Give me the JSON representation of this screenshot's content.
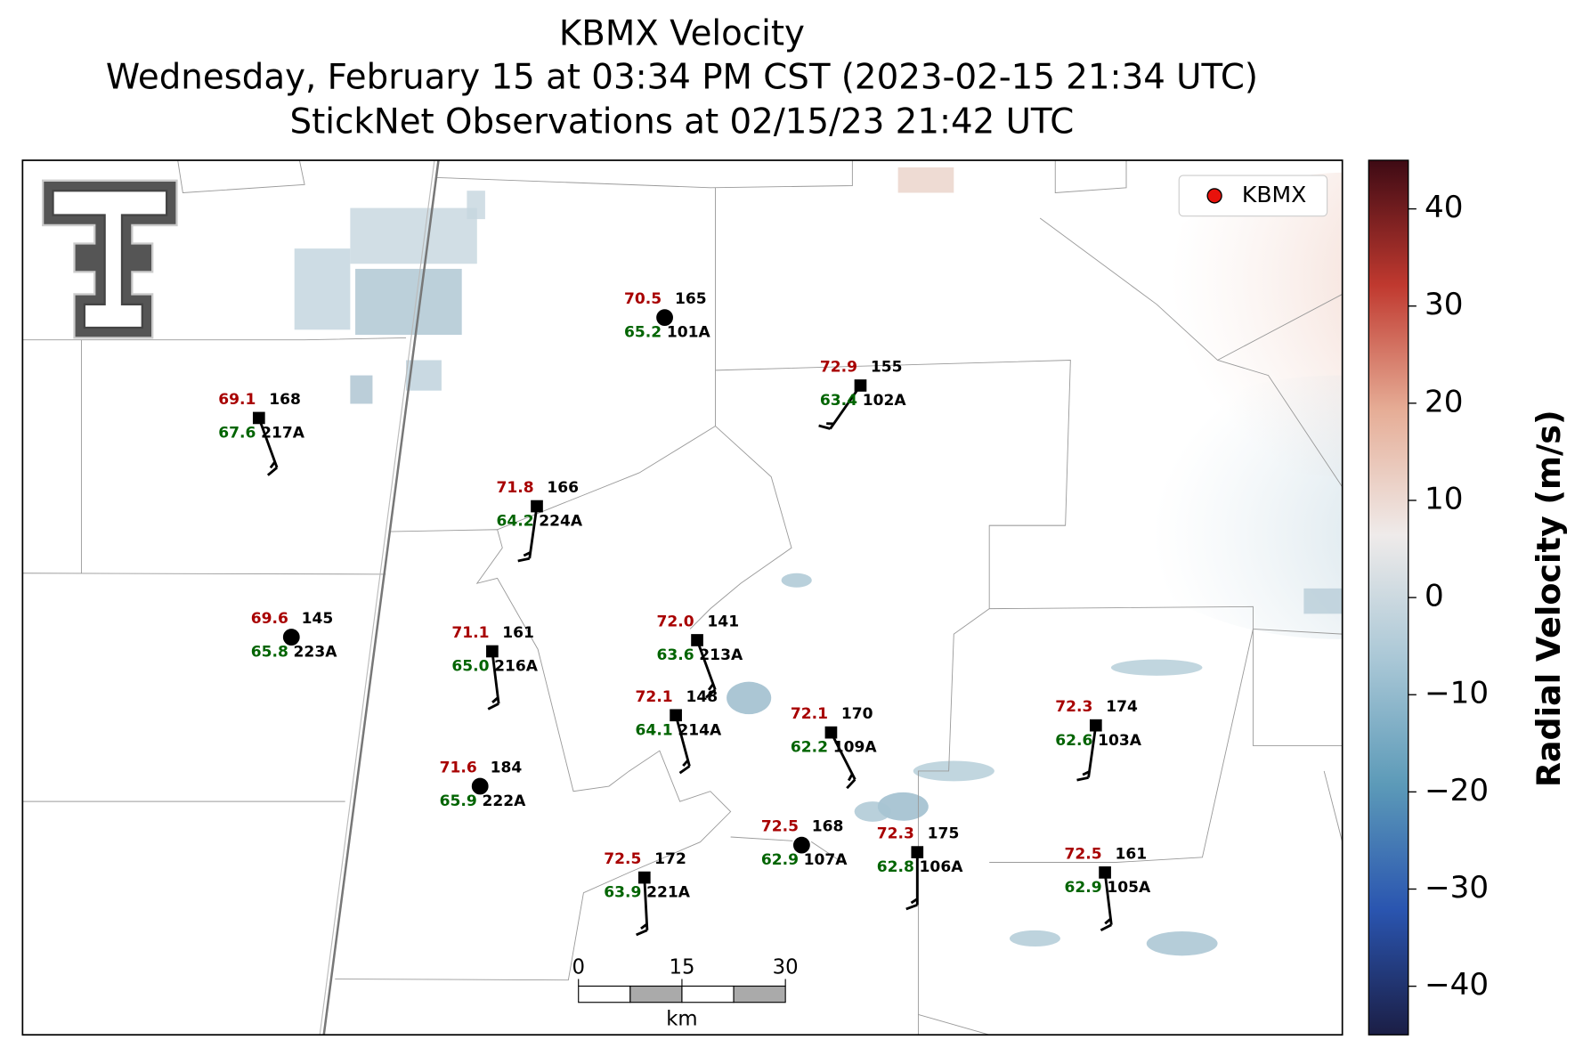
{
  "header": {
    "title": [
      "KBMX Velocity",
      "Wednesday, February 15 at 03:34 PM CST (2023-02-15 21:34 UTC)",
      "StickNet Observations at 02/15/23 21:42 UTC"
    ]
  },
  "legend": {
    "label": "KBMX",
    "color": "#e8120c"
  },
  "colorbar": {
    "label": "Radial Velocity (m/s)",
    "lim": [
      -45,
      45
    ],
    "colors": [
      "#1b1e45",
      "#2a55b0",
      "#5c9ab8",
      "#a9c7d6",
      "#efebea",
      "#e6ad96",
      "#c0392f",
      "#3e0a14"
    ],
    "ticks": [
      {
        "value": 40,
        "label": "40"
      },
      {
        "value": 30,
        "label": "30"
      },
      {
        "value": 20,
        "label": "20"
      },
      {
        "value": 10,
        "label": "10"
      },
      {
        "value": 0,
        "label": "0"
      },
      {
        "value": -10,
        "label": "−10"
      },
      {
        "value": -20,
        "label": "−20"
      },
      {
        "value": -30,
        "label": "−30"
      },
      {
        "value": -40,
        "label": "−40"
      }
    ]
  },
  "scale_bar": {
    "ticks": [
      0,
      15,
      30
    ],
    "unit": "km"
  },
  "stations": [
    {
      "id": "101A",
      "pressure": "165",
      "temp": "70.5",
      "dew": "65.2",
      "marker": "circle",
      "wind_from": null,
      "wind_kt": null
    },
    {
      "id": "102A",
      "pressure": "155",
      "temp": "72.9",
      "dew": "63.4",
      "marker": "square",
      "wind_from": 215,
      "wind_kt": 15
    },
    {
      "id": "217A",
      "pressure": "168",
      "temp": "69.1",
      "dew": "67.6",
      "marker": "square",
      "wind_from": 160,
      "wind_kt": 15
    },
    {
      "id": "224A",
      "pressure": "166",
      "temp": "71.8",
      "dew": "64.2",
      "marker": "square",
      "wind_from": 188,
      "wind_kt": 15
    },
    {
      "id": "223A",
      "pressure": "145",
      "temp": "69.6",
      "dew": "65.8",
      "marker": "circle",
      "wind_from": null,
      "wind_kt": null
    },
    {
      "id": "216A",
      "pressure": "161",
      "temp": "71.1",
      "dew": "65.0",
      "marker": "square",
      "wind_from": 173,
      "wind_kt": 15
    },
    {
      "id": "213A",
      "pressure": "141",
      "temp": "72.0",
      "dew": "63.6",
      "marker": "square",
      "wind_from": 160,
      "wind_kt": 15
    },
    {
      "id": "214A",
      "pressure": "148",
      "temp": "72.1",
      "dew": "64.1",
      "marker": "square",
      "wind_from": 165,
      "wind_kt": 15
    },
    {
      "id": "109A",
      "pressure": "170",
      "temp": "72.1",
      "dew": "62.2",
      "marker": "square",
      "wind_from": 153,
      "wind_kt": 15
    },
    {
      "id": "222A",
      "pressure": "184",
      "temp": "71.6",
      "dew": "65.9",
      "marker": "circle",
      "wind_from": null,
      "wind_kt": null
    },
    {
      "id": "103A",
      "pressure": "174",
      "temp": "72.3",
      "dew": "62.6",
      "marker": "square",
      "wind_from": 188,
      "wind_kt": 15
    },
    {
      "id": "221A",
      "pressure": "172",
      "temp": "72.5",
      "dew": "63.9",
      "marker": "square",
      "wind_from": 177,
      "wind_kt": 15
    },
    {
      "id": "107A",
      "pressure": "168",
      "temp": "72.5",
      "dew": "62.9",
      "marker": "circle",
      "wind_from": null,
      "wind_kt": null
    },
    {
      "id": "106A",
      "pressure": "175",
      "temp": "72.3",
      "dew": "62.8",
      "marker": "square",
      "wind_from": 180,
      "wind_kt": 15
    },
    {
      "id": "105A",
      "pressure": "161",
      "temp": "72.5",
      "dew": "62.9",
      "marker": "square",
      "wind_from": 173,
      "wind_kt": 15
    }
  ]
}
